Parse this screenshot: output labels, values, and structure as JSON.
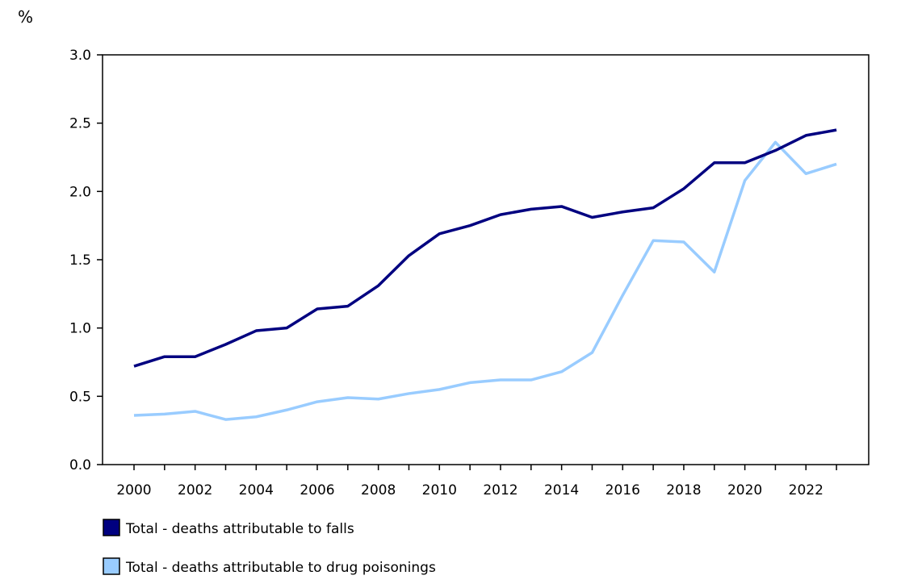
{
  "chart_data": {
    "type": "line",
    "title": "",
    "xlabel": "",
    "ylabel": "%",
    "ylim": [
      0,
      3.0
    ],
    "yticks": [
      "0.0",
      "0.5",
      "1.0",
      "1.5",
      "2.0",
      "2.5",
      "3.0"
    ],
    "xticks": [
      "2000",
      "2002",
      "2004",
      "2006",
      "2008",
      "2010",
      "2012",
      "2014",
      "2016",
      "2018",
      "2020",
      "2022"
    ],
    "grid": false,
    "legend_placement": "bottom",
    "x": [
      2000,
      2001,
      2002,
      2003,
      2004,
      2005,
      2006,
      2007,
      2008,
      2009,
      2010,
      2011,
      2012,
      2013,
      2014,
      2015,
      2016,
      2017,
      2018,
      2019,
      2020,
      2021,
      2022,
      2023
    ],
    "series": [
      {
        "name": "Total - deaths attributable to falls",
        "color": "#000080",
        "values": [
          0.72,
          0.79,
          0.79,
          0.88,
          0.98,
          1.0,
          1.14,
          1.16,
          1.31,
          1.53,
          1.69,
          1.75,
          1.83,
          1.87,
          1.89,
          1.81,
          1.85,
          1.88,
          2.02,
          2.21,
          2.21,
          2.3,
          2.41,
          2.45
        ]
      },
      {
        "name": "Total - deaths attributable to drug poisonings",
        "color": "#99ccff",
        "values": [
          0.36,
          0.37,
          0.39,
          0.33,
          0.35,
          0.4,
          0.46,
          0.49,
          0.48,
          0.52,
          0.55,
          0.6,
          0.62,
          0.62,
          0.68,
          0.82,
          1.24,
          1.64,
          1.63,
          1.41,
          2.08,
          2.36,
          2.13,
          2.2
        ]
      }
    ]
  }
}
